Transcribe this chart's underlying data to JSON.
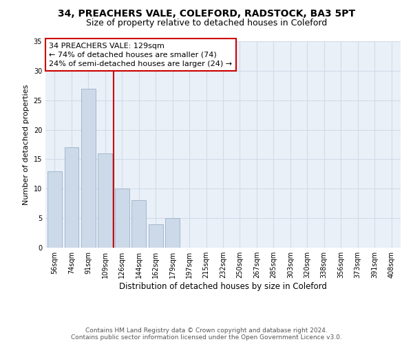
{
  "title": "34, PREACHERS VALE, COLEFORD, RADSTOCK, BA3 5PT",
  "subtitle": "Size of property relative to detached houses in Coleford",
  "xlabel": "Distribution of detached houses by size in Coleford",
  "ylabel": "Number of detached properties",
  "bar_labels": [
    "56sqm",
    "74sqm",
    "91sqm",
    "109sqm",
    "126sqm",
    "144sqm",
    "162sqm",
    "179sqm",
    "197sqm",
    "215sqm",
    "232sqm",
    "250sqm",
    "267sqm",
    "285sqm",
    "303sqm",
    "320sqm",
    "338sqm",
    "356sqm",
    "373sqm",
    "391sqm",
    "408sqm"
  ],
  "bar_values": [
    13,
    17,
    27,
    16,
    10,
    8,
    4,
    5,
    0,
    0,
    0,
    0,
    0,
    0,
    0,
    0,
    0,
    0,
    0,
    0,
    0
  ],
  "bar_color": "#ccd9e8",
  "bar_edge_color": "#9ab0c8",
  "highlight_line_color": "#cc0000",
  "ylim": [
    0,
    35
  ],
  "yticks": [
    0,
    5,
    10,
    15,
    20,
    25,
    30,
    35
  ],
  "annotation_text": "34 PREACHERS VALE: 129sqm\n← 74% of detached houses are smaller (74)\n24% of semi-detached houses are larger (24) →",
  "annotation_box_color": "#ffffff",
  "annotation_box_edge": "#cc0000",
  "footer_line1": "Contains HM Land Registry data © Crown copyright and database right 2024.",
  "footer_line2": "Contains public sector information licensed under the Open Government Licence v3.0.",
  "title_fontsize": 10,
  "subtitle_fontsize": 9,
  "xlabel_fontsize": 8.5,
  "ylabel_fontsize": 8,
  "annotation_fontsize": 8,
  "tick_fontsize": 7,
  "footer_fontsize": 6.5,
  "grid_color": "#d0dce8",
  "bg_color": "#eaf0f8"
}
